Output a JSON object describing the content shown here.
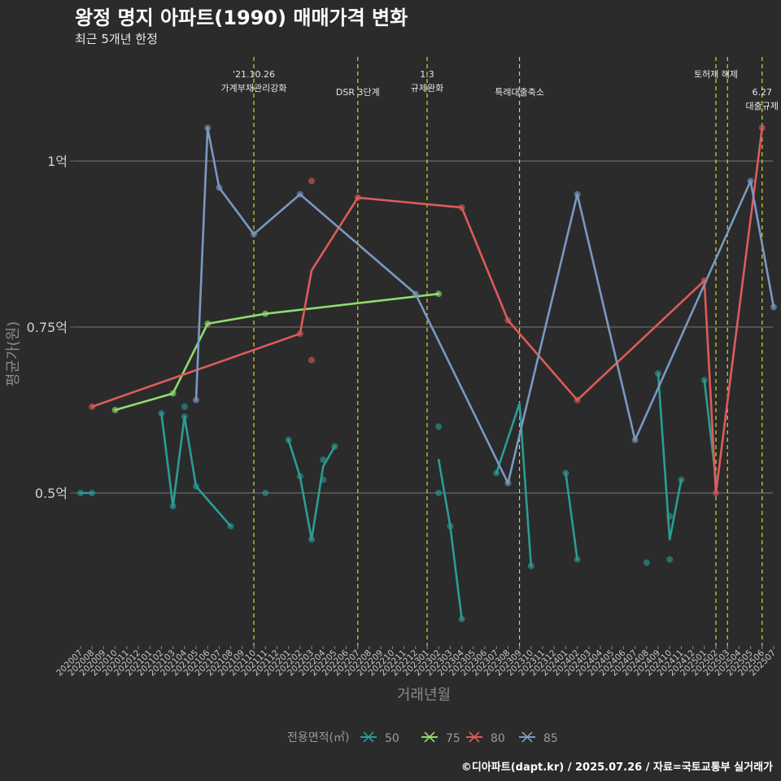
{
  "chart_data": {
    "type": "line",
    "title": "왕정 명지 아파트(1990) 매매가격 변화",
    "subtitle": "최근 5개년 한정",
    "xlabel": "거래년월",
    "ylabel": "평균가(원)",
    "caption": "©디아파트(dapt.kr) / 2025.07.26 / 자료=국토교통부 실거래가",
    "y_unit": "억원",
    "ylim": [
      0.355,
      1.15
    ],
    "yticks": [
      {
        "value": 0.5,
        "label": "0.5억"
      },
      {
        "value": 0.75,
        "label": "0.75억"
      },
      {
        "value": 1.0,
        "label": "1억"
      }
    ],
    "grid": true,
    "categories": [
      "202007",
      "202008",
      "202009",
      "202010",
      "202011",
      "202012",
      "202101",
      "202102",
      "202103",
      "202104",
      "202105",
      "202106",
      "202107",
      "202108",
      "202109",
      "202110",
      "202111",
      "202112",
      "202201",
      "202202",
      "202203",
      "202204",
      "202205",
      "202206",
      "202207",
      "202208",
      "202209",
      "202210",
      "202211",
      "202212",
      "202301",
      "202302",
      "202303",
      "202304",
      "202305",
      "202306",
      "202307",
      "202308",
      "202309",
      "202310",
      "202311",
      "202312",
      "202401",
      "202402",
      "202403",
      "202404",
      "202405",
      "202406",
      "202407",
      "202408",
      "202409",
      "202410",
      "202411",
      "202412",
      "202501",
      "202502",
      "202503",
      "202504",
      "202505",
      "202506",
      "202507"
    ],
    "events": [
      {
        "x": "202110",
        "lines": [
          "'21.10.26",
          "가계부채관리강화"
        ],
        "text_offset": 0
      },
      {
        "x": "202207",
        "lines": [
          "DSR 3단계"
        ],
        "text_offset": 1
      },
      {
        "x": "202301",
        "lines": [
          "1.3",
          "규제완화"
        ],
        "text_offset": 0
      },
      {
        "x": "202309",
        "lines": [
          "특례대출축소"
        ],
        "text_offset": 1
      },
      {
        "x": "202502",
        "lines": [
          "토허제 해제"
        ],
        "text_offset": 0
      },
      {
        "x": "202503",
        "lines": [],
        "text_offset": 0
      },
      {
        "x": "202506",
        "lines": [
          "6.27",
          "대출규제"
        ],
        "text_offset": 1
      }
    ],
    "legend": {
      "title": "전용면적(㎡)",
      "position": "bottom"
    },
    "series": [
      {
        "name": "50",
        "color": "#2a9d96",
        "segments": [
          [
            [
              "202007",
              0.5
            ],
            [
              "202008",
              0.5
            ]
          ],
          [
            [
              "202102",
              0.62
            ],
            [
              "202103",
              0.48
            ],
            [
              "202104",
              0.615
            ],
            [
              "202105",
              0.51
            ],
            [
              "202108",
              0.45
            ]
          ],
          [
            [
              "202201",
              0.58
            ],
            [
              "202202",
              0.525
            ],
            [
              "202203",
              0.43
            ],
            [
              "202204",
              0.54
            ],
            [
              "202205",
              0.57
            ]
          ],
          [
            [
              "202302",
              0.55
            ],
            [
              "202303",
              0.45
            ],
            [
              "202304",
              0.31
            ]
          ],
          [
            [
              "202307",
              0.53
            ],
            [
              "202309",
              0.635
            ],
            [
              "202310",
              0.39
            ]
          ],
          [
            [
              "202401",
              0.53
            ],
            [
              "202402",
              0.4
            ]
          ],
          [
            [
              "202409",
              0.68
            ],
            [
              "202410",
              0.43
            ],
            [
              "202411",
              0.52
            ]
          ],
          [
            [
              "202501",
              0.67
            ],
            [
              "202502",
              0.52
            ]
          ]
        ],
        "points": [
          [
            "202007",
            0.5
          ],
          [
            "202008",
            0.5
          ],
          [
            "202102",
            0.62
          ],
          [
            "202103",
            0.48
          ],
          [
            "202104",
            0.615
          ],
          [
            "202104",
            0.63
          ],
          [
            "202105",
            0.51
          ],
          [
            "202108",
            0.45
          ],
          [
            "202111",
            0.5
          ],
          [
            "202201",
            0.58
          ],
          [
            "202202",
            0.525
          ],
          [
            "202203",
            0.43
          ],
          [
            "202204",
            0.55
          ],
          [
            "202204",
            0.52
          ],
          [
            "202205",
            0.57
          ],
          [
            "202302",
            0.6
          ],
          [
            "202302",
            0.5
          ],
          [
            "202303",
            0.45
          ],
          [
            "202304",
            0.31
          ],
          [
            "202307",
            0.53
          ],
          [
            "202310",
            0.39
          ],
          [
            "202401",
            0.53
          ],
          [
            "202402",
            0.4
          ],
          [
            "202408",
            0.395
          ],
          [
            "202409",
            0.68
          ],
          [
            "202410",
            0.4
          ],
          [
            "202410",
            0.465
          ],
          [
            "202411",
            0.52
          ],
          [
            "202501",
            0.67
          ]
        ]
      },
      {
        "name": "75",
        "color": "#8fdc6f",
        "segments": [
          [
            [
              "202010",
              0.625
            ],
            [
              "202103",
              0.65
            ],
            [
              "202106",
              0.755
            ],
            [
              "202111",
              0.77
            ],
            [
              "202302",
              0.8
            ]
          ]
        ],
        "points": [
          [
            "202010",
            0.625
          ],
          [
            "202103",
            0.65
          ],
          [
            "202106",
            0.755
          ],
          [
            "202111",
            0.77
          ],
          [
            "202302",
            0.8
          ]
        ]
      },
      {
        "name": "80",
        "color": "#e05a5a",
        "segments": [
          [
            [
              "202008",
              0.63
            ],
            [
              "202202",
              0.74
            ],
            [
              "202203",
              0.835
            ],
            [
              "202207",
              0.945
            ],
            [
              "202304",
              0.93
            ],
            [
              "202308",
              0.76
            ],
            [
              "202402",
              0.64
            ],
            [
              "202501",
              0.82
            ],
            [
              "202502",
              0.5
            ],
            [
              "202506",
              1.05
            ]
          ]
        ],
        "points": [
          [
            "202008",
            0.63
          ],
          [
            "202202",
            0.74
          ],
          [
            "202203",
            0.97
          ],
          [
            "202203",
            0.7
          ],
          [
            "202207",
            0.945
          ],
          [
            "202304",
            0.93
          ],
          [
            "202308",
            0.76
          ],
          [
            "202402",
            0.64
          ],
          [
            "202501",
            0.82
          ],
          [
            "202502",
            0.5
          ],
          [
            "202506",
            1.05
          ]
        ]
      },
      {
        "name": "85",
        "color": "#7a99c2",
        "segments": [
          [
            [
              "202105",
              0.64
            ],
            [
              "202106",
              1.05
            ],
            [
              "202107",
              0.96
            ],
            [
              "202110",
              0.89
            ],
            [
              "202202",
              0.95
            ],
            [
              "202212",
              0.8
            ],
            [
              "202308",
              0.515
            ],
            [
              "202402",
              0.95
            ],
            [
              "202407",
              0.58
            ],
            [
              "202505",
              0.97
            ],
            [
              "202507",
              0.78
            ]
          ]
        ],
        "points": [
          [
            "202105",
            0.64
          ],
          [
            "202106",
            1.05
          ],
          [
            "202107",
            0.96
          ],
          [
            "202110",
            0.89
          ],
          [
            "202202",
            0.95
          ],
          [
            "202212",
            0.8
          ],
          [
            "202308",
            0.515
          ],
          [
            "202402",
            0.95
          ],
          [
            "202407",
            0.58
          ],
          [
            "202505",
            0.97
          ],
          [
            "202507",
            0.78
          ]
        ]
      }
    ]
  }
}
